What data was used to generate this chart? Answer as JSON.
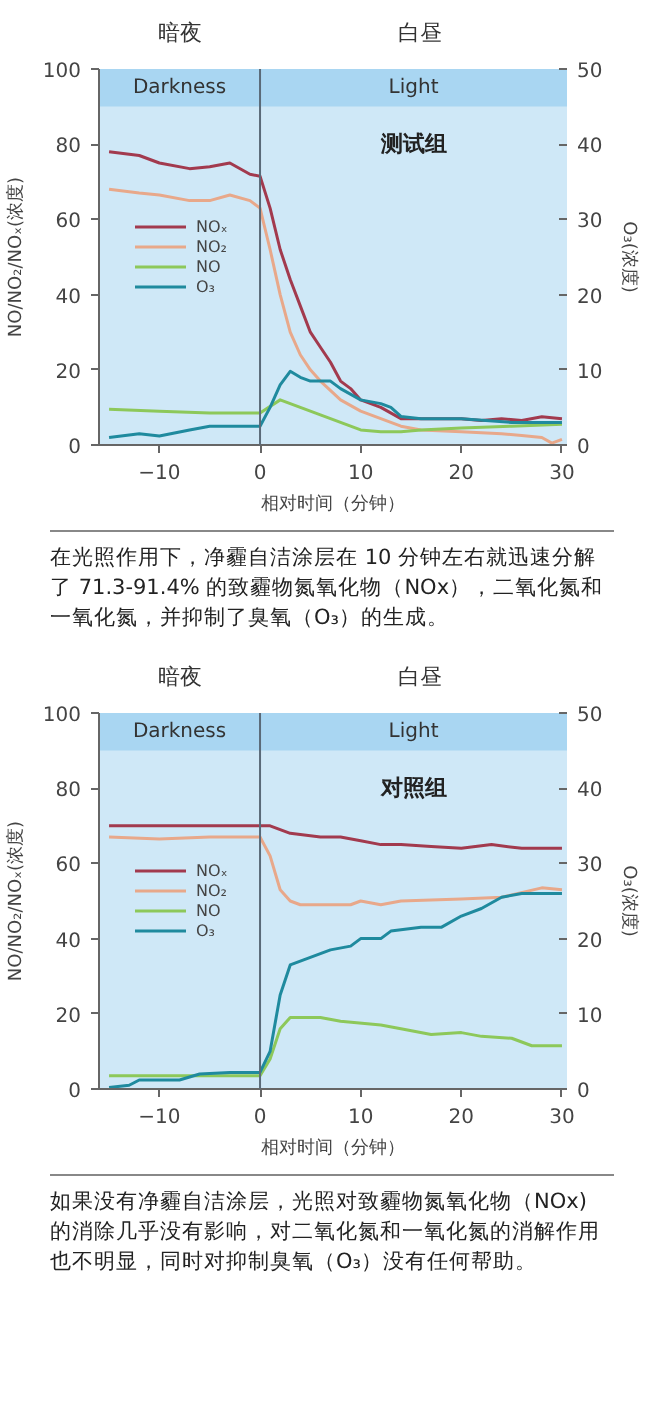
{
  "chart_data": [
    {
      "type": "line",
      "xlabel": "相对时间（分钟）",
      "ylabel": "NO/NO₂/NOₓ(浓度)",
      "y2label": "O₃(浓度)",
      "annotations": [
        "暗夜",
        "白昼",
        "测试组",
        "在光照作用下，净霾自洁涂层在 10 分钟左右就迅速分解了 71.3-91.4% 的致霾物氮氧化物（NOx），二氧化氮和一氧化氮，并抑制了臭氧（O₃）的生成。"
      ],
      "xlim": [
        -16,
        30.5
      ],
      "xticks": [
        -10,
        0,
        10,
        20,
        30
      ],
      "ylim": [
        0,
        100
      ],
      "yticks": [
        0,
        20,
        40,
        60,
        80,
        100
      ],
      "y2lim": [
        0,
        50
      ],
      "y2ticks": [
        0,
        10,
        20,
        30,
        40,
        50
      ],
      "grid": false,
      "legend": "left",
      "bands": [
        {
          "axis": "x",
          "from": -16,
          "to": 0,
          "label": "Darkness",
          "color": "#cfe8f7"
        },
        {
          "axis": "x",
          "from": 0,
          "to": 30.5,
          "label": "Light",
          "color": "#cfe8f7"
        },
        {
          "axis": "y",
          "from": 90,
          "to": 100,
          "color": "#a9d6f2"
        }
      ],
      "ref_lines": [
        {
          "axis": "x",
          "value": 0,
          "color": "#5a6a78"
        }
      ],
      "series": [
        {
          "name": "NOₓ",
          "color": "#a23a4e",
          "x": [
            -15,
            -12,
            -10,
            -7,
            -5,
            -3,
            -1,
            0,
            1,
            2,
            3,
            4,
            5,
            6,
            7,
            8,
            9,
            10,
            12,
            14,
            16,
            20,
            22,
            24,
            26,
            28,
            30
          ],
          "values": [
            78,
            77,
            75,
            73.5,
            74,
            75,
            72,
            71.5,
            63,
            52,
            44,
            37,
            30,
            26,
            22,
            17,
            15,
            12,
            10,
            7,
            7,
            7,
            6.5,
            7,
            6.5,
            7.5,
            7
          ]
        },
        {
          "name": "NO₂",
          "color": "#e8a88a",
          "x": [
            -15,
            -12,
            -10,
            -7,
            -5,
            -3,
            -1,
            0,
            1,
            2,
            3,
            4,
            5,
            6,
            8,
            10,
            12,
            14,
            16,
            20,
            24,
            26,
            28,
            29,
            30
          ],
          "values": [
            68,
            67,
            66.5,
            65,
            65,
            66.5,
            65,
            63,
            52,
            40,
            30,
            24,
            20,
            17,
            12,
            9,
            7,
            5,
            4,
            3.5,
            3,
            2.5,
            2,
            0.5,
            1.5
          ]
        },
        {
          "name": "NO",
          "color": "#8dc85a",
          "x": [
            -15,
            -10,
            -5,
            0,
            2,
            4,
            6,
            8,
            10,
            12,
            14,
            16,
            20,
            25,
            30
          ],
          "values": [
            9.5,
            9,
            8.5,
            8.5,
            12,
            10,
            8,
            6,
            4,
            3.5,
            3.5,
            4,
            4.5,
            5,
            5.5
          ]
        },
        {
          "name": "O₃",
          "color": "#1f8a9e",
          "axis": "y2",
          "x": [
            -15,
            -12,
            -10,
            -7,
            -5,
            0,
            1,
            2,
            3,
            4,
            5,
            7,
            8,
            10,
            12,
            13,
            14,
            16,
            20,
            25,
            30
          ],
          "values": [
            1,
            1.5,
            1.2,
            2,
            2.5,
            2.5,
            5,
            8,
            9.8,
            9,
            8.5,
            8.5,
            7.5,
            6,
            5.5,
            5,
            3.8,
            3.5,
            3.5,
            3,
            3
          ]
        }
      ]
    },
    {
      "type": "line",
      "xlabel": "相对时间（分钟）",
      "ylabel": "NO/NO₂/NOₓ(浓度)",
      "y2label": "O₃(浓度)",
      "annotations": [
        "暗夜",
        "白昼",
        "对照组",
        "如果没有净霾自洁涂层，光照对致霾物氮氧化物（NOx) 的消除几乎没有影响，对二氧化氮和一氧化氮的消解作用也不明显，同时对抑制臭氧（O₃）没有任何帮助。"
      ],
      "xlim": [
        -16,
        30.5
      ],
      "xticks": [
        -10,
        0,
        10,
        20,
        30
      ],
      "ylim": [
        0,
        100
      ],
      "yticks": [
        0,
        20,
        40,
        60,
        80,
        100
      ],
      "y2lim": [
        0,
        50
      ],
      "y2ticks": [
        0,
        10,
        20,
        30,
        40,
        50
      ],
      "grid": false,
      "legend": "left",
      "bands": [
        {
          "axis": "x",
          "from": -16,
          "to": 0,
          "label": "Darkness",
          "color": "#cfe8f7"
        },
        {
          "axis": "x",
          "from": 0,
          "to": 30.5,
          "label": "Light",
          "color": "#cfe8f7"
        },
        {
          "axis": "y",
          "from": 90,
          "to": 100,
          "color": "#a9d6f2"
        }
      ],
      "ref_lines": [
        {
          "axis": "x",
          "value": 0,
          "color": "#5a6a78"
        }
      ],
      "series": [
        {
          "name": "NOₓ",
          "color": "#a23a4e",
          "x": [
            -15,
            0,
            1,
            3,
            6,
            8,
            10,
            12,
            14,
            17,
            20,
            23,
            26,
            30
          ],
          "values": [
            70,
            70,
            70,
            68,
            67,
            67,
            66,
            65,
            65,
            64.5,
            64,
            65,
            64,
            64
          ]
        },
        {
          "name": "NO₂",
          "color": "#e8a88a",
          "x": [
            -15,
            -10,
            -5,
            0,
            1,
            2,
            3,
            4,
            9,
            10,
            12,
            14,
            20,
            24,
            28,
            30
          ],
          "values": [
            67,
            66.5,
            67,
            67,
            62,
            53,
            50,
            49,
            49,
            50,
            49,
            50,
            50.5,
            51,
            53.5,
            53
          ]
        },
        {
          "name": "NO",
          "color": "#8dc85a",
          "x": [
            -15,
            0,
            1,
            2,
            3,
            6,
            8,
            12,
            14,
            17,
            20,
            22,
            25,
            27,
            30
          ],
          "values": [
            3.5,
            3.5,
            8,
            16,
            19,
            19,
            18,
            17,
            16,
            14.5,
            15,
            14,
            13.5,
            11.5,
            11.5
          ]
        },
        {
          "name": "O₃",
          "color": "#1f8a9e",
          "axis": "y2",
          "x": [
            -15,
            -13,
            -12,
            -8,
            -6,
            -3,
            0,
            1,
            2,
            3,
            5,
            7,
            9,
            10,
            12,
            13,
            16,
            18,
            20,
            22,
            24,
            26,
            30
          ],
          "values": [
            0.2,
            0.5,
            1.2,
            1.2,
            2,
            2.2,
            2.2,
            5,
            12.5,
            16.5,
            17.5,
            18.5,
            19,
            20,
            20,
            21,
            21.5,
            21.5,
            23,
            24,
            25.5,
            26,
            26
          ]
        }
      ]
    }
  ]
}
